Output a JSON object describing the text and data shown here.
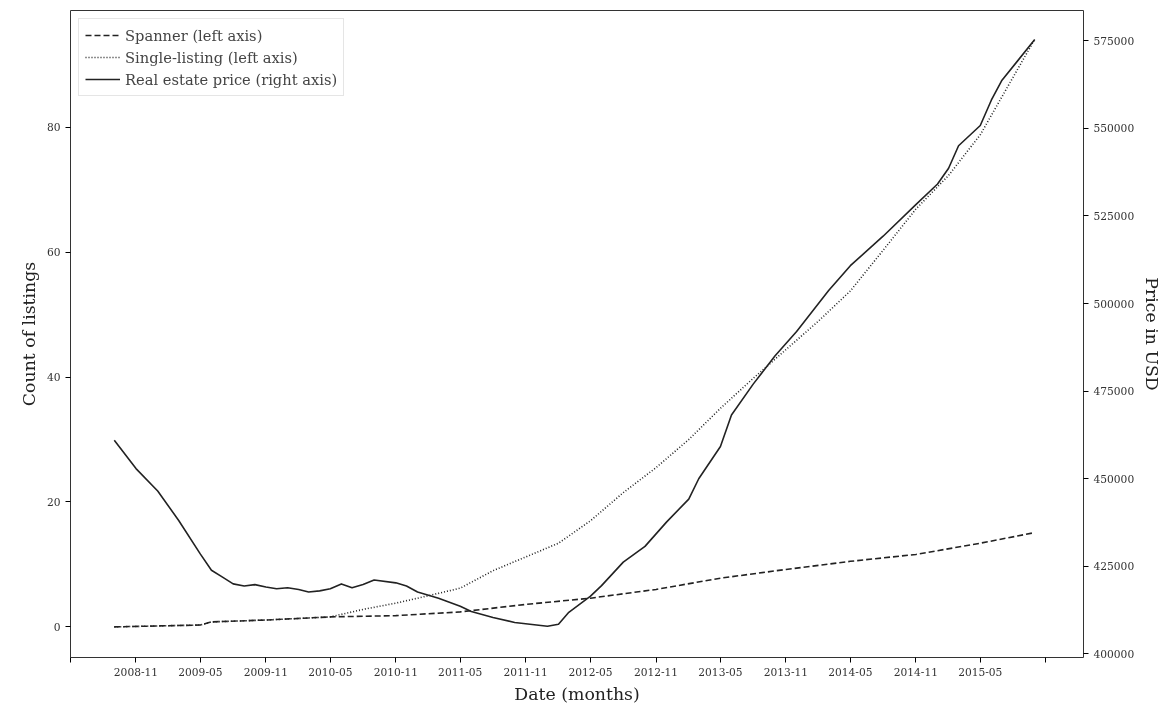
{
  "chart_data": {
    "type": "line",
    "xlabel": "Date (months)",
    "ylabel": "Count of listings",
    "y2label": "Price in USD",
    "xlim": [
      "2008-05-01",
      "2016-02-15"
    ],
    "xticks": [
      {
        "value": "2008-05",
        "label": null
      },
      "2008-11",
      "2009-05",
      "2009-11",
      "2010-05",
      "2010-11",
      "2011-05",
      "2011-11",
      "2012-05",
      "2012-11",
      "2013-05",
      "2013-11",
      "2014-05",
      "2014-11",
      "2015-05",
      {
        "value": "2015-11",
        "label": null
      }
    ],
    "ylim": [
      -4.9,
      98.7
    ],
    "yticks": [
      0,
      20,
      40,
      60,
      80
    ],
    "y2lim": [
      399000,
      583600
    ],
    "y2ticks": [
      400000,
      425000,
      450000,
      475000,
      500000,
      525000,
      550000,
      575000
    ],
    "grid": false,
    "legend": "top left",
    "marker": "none",
    "series": [
      {
        "name": "Spanner (left axis)",
        "color": "#222222",
        "line_style": "dashed",
        "x": [
          "2008-09",
          "2009-05",
          "2009-06",
          "2009-11",
          "2010-05",
          "2010-11",
          "2011-05",
          "2011-11",
          "2012-05",
          "2012-11",
          "2013-05",
          "2013-11",
          "2014-05",
          "2014-11",
          "2015-05",
          "2015-10"
        ],
        "values": [
          0,
          0.3,
          0.8,
          1.1,
          1.6,
          1.8,
          2.4,
          3.6,
          4.6,
          6.0,
          7.8,
          9.2,
          10.5,
          11.6,
          13.4,
          15.1
        ]
      },
      {
        "name": "Single-listing (left axis)",
        "color": "#222222",
        "line_style": "dotted",
        "x": [
          "2008-09",
          "2009-05",
          "2009-06",
          "2009-11",
          "2010-05",
          "2010-08",
          "2010-11",
          "2011-02",
          "2011-05",
          "2011-08",
          "2011-11",
          "2012-02",
          "2012-05",
          "2012-08",
          "2012-11",
          "2013-02",
          "2013-05",
          "2013-08",
          "2013-11",
          "2014-02",
          "2014-05",
          "2014-08",
          "2014-11",
          "2015-02",
          "2015-05",
          "2015-08",
          "2015-10"
        ],
        "values": [
          0,
          0.3,
          0.8,
          1.1,
          1.6,
          2.8,
          3.8,
          5.0,
          6.2,
          9.0,
          11.2,
          13.4,
          17.0,
          21.5,
          25.5,
          30.0,
          35.0,
          39.8,
          44.4,
          49.0,
          53.8,
          60.3,
          66.9,
          72.3,
          78.8,
          88.0,
          94.1
        ]
      },
      {
        "name": "Real estate price (right axis)",
        "color": "#222222",
        "line_style": "solid",
        "axis": "y2",
        "x": [
          "2008-09",
          "2008-11",
          "2009-01",
          "2009-03",
          "2009-05",
          "2009-06",
          "2009-07",
          "2009-08",
          "2009-09",
          "2009-10",
          "2009-11",
          "2009-12",
          "2010-01",
          "2010-02",
          "2010-03",
          "2010-04",
          "2010-05",
          "2010-06",
          "2010-07",
          "2010-08",
          "2010-09",
          "2010-11",
          "2010-12",
          "2011-01",
          "2011-03",
          "2011-05",
          "2011-06",
          "2011-08",
          "2011-10",
          "2012-01",
          "2012-02",
          "2012-03",
          "2012-05",
          "2012-06",
          "2012-08",
          "2012-10",
          "2012-12",
          "2013-02",
          "2013-03",
          "2013-05",
          "2013-06",
          "2013-08",
          "2013-10",
          "2013-12",
          "2014-03",
          "2014-05",
          "2014-08",
          "2014-11",
          "2015-01",
          "2015-02",
          "2015-03",
          "2015-05",
          "2015-06",
          "2015-07",
          "2015-10"
        ],
        "values": [
          461000,
          452900,
          446500,
          438100,
          428500,
          423900,
          422000,
          420000,
          419400,
          419800,
          419100,
          418600,
          418900,
          418400,
          417700,
          418000,
          418600,
          420000,
          418900,
          419800,
          421100,
          420300,
          419400,
          417700,
          415900,
          413600,
          412100,
          410400,
          409000,
          407900,
          408500,
          411900,
          416500,
          419500,
          426200,
          430700,
          437700,
          444200,
          450000,
          459200,
          468200,
          477000,
          485000,
          492000,
          503700,
          510800,
          519200,
          528200,
          534100,
          538600,
          545000,
          550800,
          558000,
          563700,
          575300
        ]
      }
    ]
  }
}
